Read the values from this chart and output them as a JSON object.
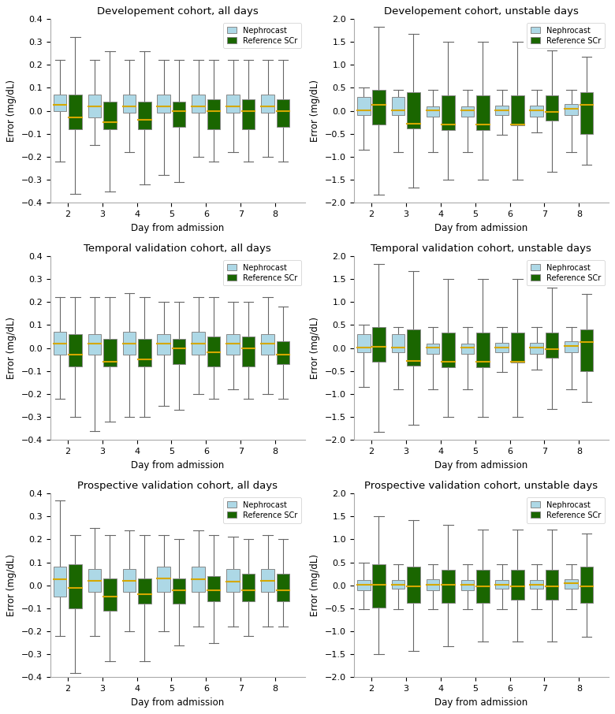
{
  "titles": [
    [
      "Developement cohort, all days",
      "Developement cohort, unstable days"
    ],
    [
      "Temporal validation cohort, all days",
      "Temporal validation cohort, unstable days"
    ],
    [
      "Prospective validation cohort, all days",
      "Prospective validation cohort, unstable days"
    ]
  ],
  "days": [
    2,
    3,
    4,
    5,
    6,
    7,
    8
  ],
  "nephrocast_color": "#add8e6",
  "reference_color": "#1a6600",
  "median_color": "#d4a800",
  "whisker_color": "#666666",
  "ylabel": "Error (mg/dL)",
  "xlabel": "Day from admission",
  "ylim_all": [
    -0.4,
    0.4
  ],
  "ylim_unstable": [
    -2.0,
    2.0
  ],
  "yticks_all": [
    -0.4,
    -0.3,
    -0.2,
    -0.1,
    0.0,
    0.1,
    0.2,
    0.3,
    0.4
  ],
  "yticks_unstable": [
    -2.0,
    -1.5,
    -1.0,
    -0.5,
    0.0,
    0.5,
    1.0,
    1.5,
    2.0
  ],
  "plots": {
    "dev_all": {
      "nephrocast": {
        "q1": [
          0.0,
          -0.03,
          -0.01,
          -0.01,
          -0.01,
          -0.01,
          -0.01
        ],
        "median": [
          0.025,
          0.02,
          0.02,
          0.02,
          0.02,
          0.02,
          0.02
        ],
        "q3": [
          0.07,
          0.07,
          0.07,
          0.07,
          0.07,
          0.07,
          0.07
        ],
        "whislo": [
          -0.22,
          -0.15,
          -0.18,
          -0.28,
          -0.2,
          -0.18,
          -0.2
        ],
        "whishi": [
          0.22,
          0.22,
          0.22,
          0.22,
          0.22,
          0.22,
          0.22
        ]
      },
      "reference": {
        "q1": [
          -0.08,
          -0.08,
          -0.08,
          -0.07,
          -0.08,
          -0.08,
          -0.07
        ],
        "median": [
          -0.03,
          -0.05,
          -0.04,
          0.0,
          0.0,
          0.0,
          0.0
        ],
        "q3": [
          0.07,
          0.04,
          0.04,
          0.04,
          0.05,
          0.05,
          0.05
        ],
        "whislo": [
          -0.36,
          -0.35,
          -0.32,
          -0.31,
          -0.22,
          -0.22,
          -0.22
        ],
        "whishi": [
          0.32,
          0.26,
          0.26,
          0.22,
          0.22,
          0.22,
          0.22
        ]
      }
    },
    "dev_unstable": {
      "nephrocast": {
        "q1": [
          -0.1,
          -0.1,
          -0.12,
          -0.12,
          -0.1,
          -0.13,
          -0.1
        ],
        "median": [
          0.01,
          0.01,
          0.01,
          0.01,
          0.01,
          0.01,
          0.05
        ],
        "q3": [
          0.3,
          0.3,
          0.1,
          0.1,
          0.12,
          0.12,
          0.15
        ],
        "whislo": [
          -0.85,
          -0.9,
          -0.9,
          -0.9,
          -0.52,
          -0.47,
          -0.9
        ],
        "whishi": [
          0.5,
          0.46,
          0.46,
          0.46,
          0.46,
          0.46,
          0.46
        ]
      },
      "reference": {
        "q1": [
          -0.3,
          -0.38,
          -0.42,
          -0.42,
          -0.32,
          -0.22,
          -0.5
        ],
        "median": [
          0.13,
          -0.28,
          -0.3,
          -0.3,
          -0.3,
          -0.03,
          0.13
        ],
        "q3": [
          0.46,
          0.4,
          0.33,
          0.33,
          0.33,
          0.33,
          0.4
        ],
        "whislo": [
          -1.82,
          -1.67,
          -1.5,
          -1.5,
          -1.5,
          -1.32,
          -1.17
        ],
        "whishi": [
          1.82,
          1.67,
          1.5,
          1.5,
          1.5,
          1.32,
          1.17
        ]
      }
    },
    "temp_all": {
      "nephrocast": {
        "q1": [
          -0.03,
          -0.03,
          -0.03,
          -0.03,
          -0.03,
          -0.03,
          -0.03
        ],
        "median": [
          0.02,
          0.02,
          0.02,
          0.02,
          0.02,
          0.02,
          0.02
        ],
        "q3": [
          0.07,
          0.06,
          0.07,
          0.06,
          0.07,
          0.06,
          0.06
        ],
        "whislo": [
          -0.22,
          -0.36,
          -0.3,
          -0.25,
          -0.2,
          -0.18,
          -0.2
        ],
        "whishi": [
          0.22,
          0.22,
          0.24,
          0.2,
          0.22,
          0.2,
          0.22
        ]
      },
      "reference": {
        "q1": [
          -0.08,
          -0.08,
          -0.08,
          -0.07,
          -0.08,
          -0.08,
          -0.07
        ],
        "median": [
          -0.03,
          -0.06,
          -0.05,
          0.0,
          -0.02,
          0.0,
          -0.03
        ],
        "q3": [
          0.06,
          0.04,
          0.04,
          0.04,
          0.05,
          0.05,
          0.03
        ],
        "whislo": [
          -0.3,
          -0.32,
          -0.3,
          -0.27,
          -0.22,
          -0.22,
          -0.22
        ],
        "whishi": [
          0.22,
          0.22,
          0.22,
          0.2,
          0.22,
          0.2,
          0.18
        ]
      }
    },
    "temp_unstable": {
      "nephrocast": {
        "q1": [
          -0.1,
          -0.1,
          -0.12,
          -0.12,
          -0.1,
          -0.13,
          -0.1
        ],
        "median": [
          0.01,
          0.01,
          0.01,
          0.01,
          0.01,
          0.01,
          0.05
        ],
        "q3": [
          0.3,
          0.3,
          0.1,
          0.1,
          0.12,
          0.12,
          0.15
        ],
        "whislo": [
          -0.85,
          -0.9,
          -0.9,
          -0.9,
          -0.52,
          -0.47,
          -0.9
        ],
        "whishi": [
          0.5,
          0.46,
          0.46,
          0.46,
          0.46,
          0.46,
          0.46
        ]
      },
      "reference": {
        "q1": [
          -0.3,
          -0.38,
          -0.42,
          -0.42,
          -0.32,
          -0.22,
          -0.5
        ],
        "median": [
          0.03,
          -0.28,
          -0.3,
          -0.3,
          -0.3,
          -0.03,
          0.13
        ],
        "q3": [
          0.46,
          0.4,
          0.33,
          0.33,
          0.33,
          0.33,
          0.4
        ],
        "whislo": [
          -1.82,
          -1.67,
          -1.5,
          -1.5,
          -1.5,
          -1.32,
          -1.17
        ],
        "whishi": [
          1.82,
          1.67,
          1.5,
          1.5,
          1.5,
          1.32,
          1.17
        ]
      }
    },
    "prosp_all": {
      "nephrocast": {
        "q1": [
          -0.05,
          -0.03,
          -0.03,
          -0.03,
          -0.03,
          -0.03,
          -0.03
        ],
        "median": [
          0.025,
          0.02,
          0.02,
          0.03,
          0.025,
          0.015,
          0.02
        ],
        "q3": [
          0.08,
          0.07,
          0.07,
          0.08,
          0.08,
          0.07,
          0.07
        ],
        "whislo": [
          -0.22,
          -0.22,
          -0.2,
          -0.2,
          -0.18,
          -0.18,
          -0.18
        ],
        "whishi": [
          0.37,
          0.25,
          0.24,
          0.22,
          0.24,
          0.21,
          0.22
        ]
      },
      "reference": {
        "q1": [
          -0.1,
          -0.11,
          -0.08,
          -0.08,
          -0.07,
          -0.07,
          -0.07
        ],
        "median": [
          -0.01,
          -0.05,
          -0.04,
          -0.02,
          -0.02,
          -0.02,
          -0.02
        ],
        "q3": [
          0.09,
          0.03,
          0.03,
          0.03,
          0.04,
          0.05,
          0.05
        ],
        "whislo": [
          -0.38,
          -0.33,
          -0.33,
          -0.26,
          -0.25,
          -0.22,
          -0.18
        ],
        "whishi": [
          0.22,
          0.22,
          0.22,
          0.2,
          0.22,
          0.2,
          0.2
        ]
      }
    },
    "prosp_unstable": {
      "nephrocast": {
        "q1": [
          -0.1,
          -0.08,
          -0.1,
          -0.1,
          -0.08,
          -0.08,
          -0.08
        ],
        "median": [
          0.01,
          0.01,
          0.01,
          0.01,
          0.01,
          0.01,
          0.05
        ],
        "q3": [
          0.12,
          0.12,
          0.13,
          0.12,
          0.12,
          0.12,
          0.13
        ],
        "whislo": [
          -0.52,
          -0.52,
          -0.52,
          -0.52,
          -0.52,
          -0.52,
          -0.52
        ],
        "whishi": [
          0.5,
          0.46,
          0.46,
          0.46,
          0.46,
          0.46,
          0.46
        ]
      },
      "reference": {
        "q1": [
          -0.48,
          -0.38,
          -0.38,
          -0.38,
          -0.32,
          -0.32,
          -0.38
        ],
        "median": [
          0.02,
          -0.02,
          0.02,
          -0.02,
          -0.02,
          -0.02,
          -0.02
        ],
        "q3": [
          0.46,
          0.4,
          0.33,
          0.33,
          0.33,
          0.33,
          0.4
        ],
        "whislo": [
          -1.5,
          -1.42,
          -1.32,
          -1.22,
          -1.22,
          -1.22,
          -1.12
        ],
        "whishi": [
          1.5,
          1.42,
          1.32,
          1.22,
          1.22,
          1.22,
          1.12
        ]
      }
    }
  }
}
